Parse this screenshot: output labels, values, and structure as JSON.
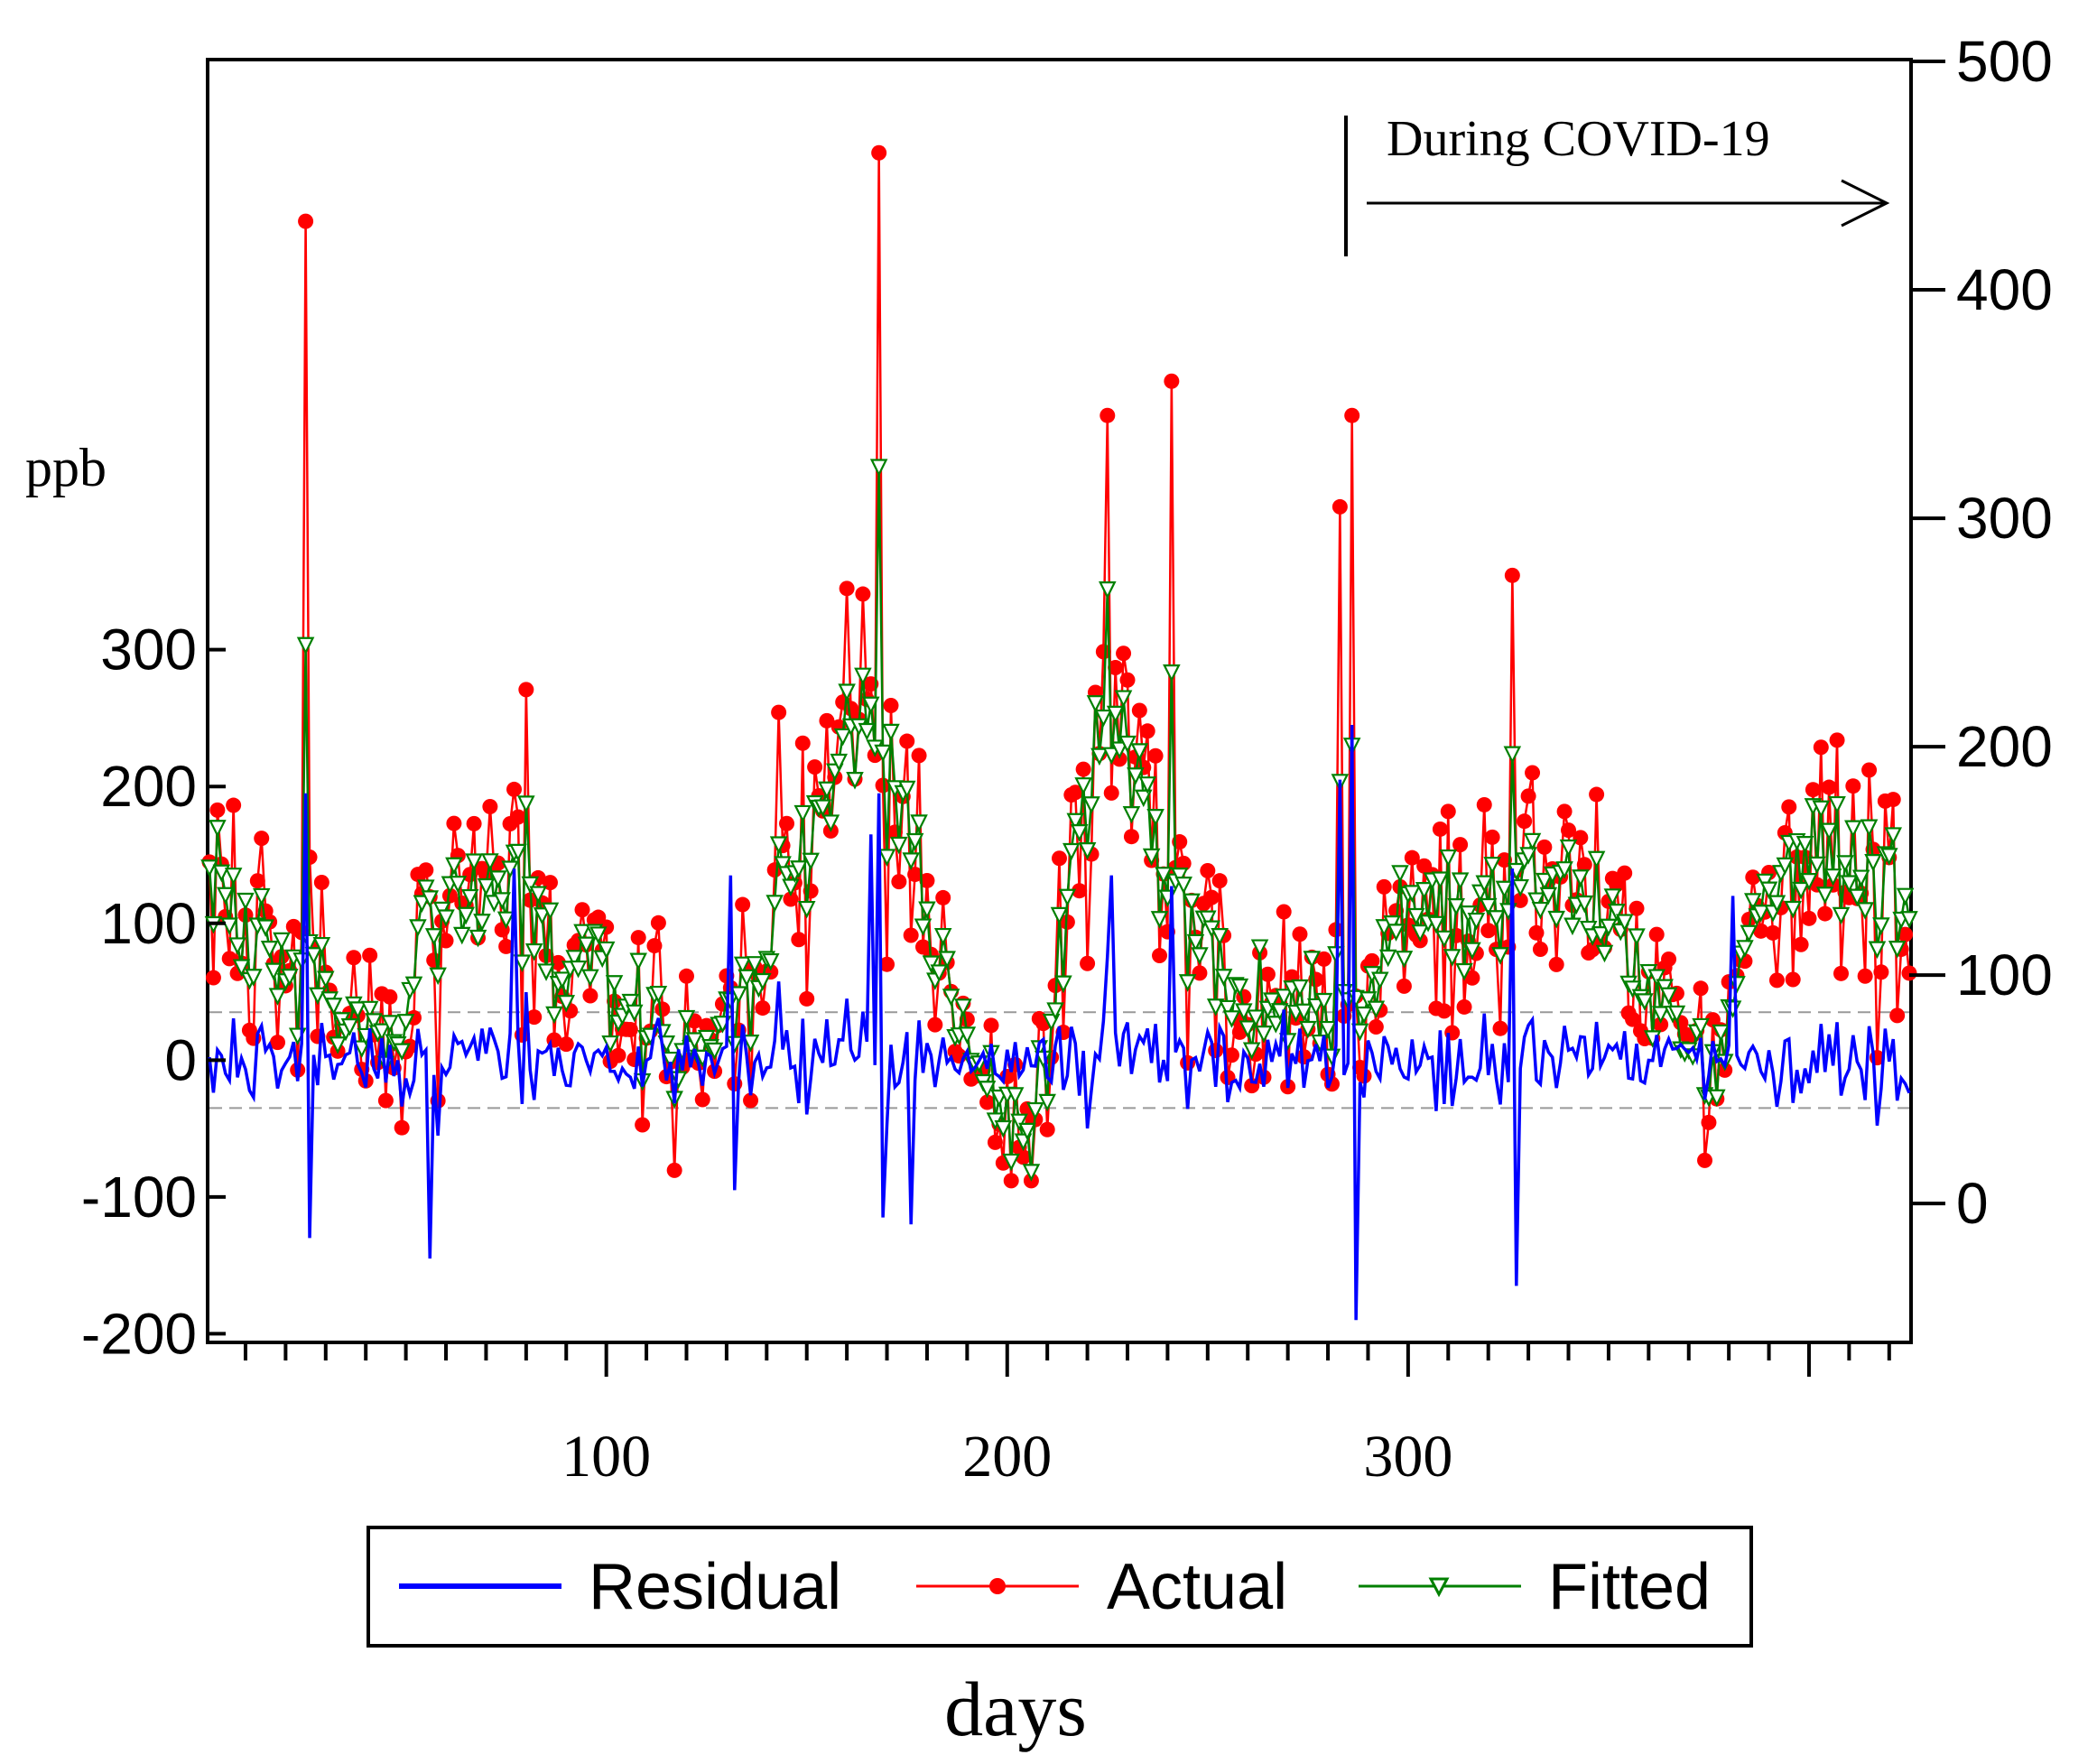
{
  "chart_data": {
    "type": "line",
    "xlabel": "days",
    "left_ylabel": "ppb",
    "annotation": "During COVID-19",
    "covid_start_day": 283,
    "x_range": [
      1,
      425
    ],
    "x_ticks": [
      100,
      200,
      300
    ],
    "right_axis": {
      "range": [
        -60,
        500
      ],
      "ticks": [
        0,
        100,
        200,
        300,
        400,
        500
      ],
      "tick_labels": [
        "0",
        "100",
        "200",
        "300",
        "400",
        "500"
      ]
    },
    "left_axis": {
      "range": [
        -205,
        730
      ],
      "ticks": [
        -200,
        -100,
        0,
        100,
        200,
        300
      ],
      "tick_labels": [
        "-200",
        "-100",
        "0",
        "100",
        "200",
        "300"
      ]
    },
    "residual_band": [
      -35,
      35
    ],
    "legend": [
      "Residual",
      "Actual",
      "Fitted"
    ],
    "colors": {
      "residual": "#0000ff",
      "actual": "#ff0000",
      "fitted": "#008000",
      "band": "#999999"
    },
    "baseline_profile": {
      "axis": "right",
      "x": [
        1,
        10,
        20,
        30,
        40,
        48,
        55,
        60,
        65,
        72,
        80,
        88,
        95,
        100,
        105,
        112,
        118,
        124,
        130,
        136,
        142,
        148,
        155,
        162,
        168,
        175,
        181,
        188,
        194,
        200,
        206,
        210,
        214,
        218,
        222,
        227,
        232,
        238,
        244,
        250,
        256,
        262,
        268,
        274,
        280,
        286,
        292,
        298,
        304,
        310,
        316,
        322,
        328,
        334,
        340,
        346,
        352,
        358,
        364,
        370,
        376,
        382,
        388,
        394,
        400,
        406,
        412,
        418,
        425
      ],
      "values": [
        150,
        120,
        105,
        90,
        75,
        70,
        130,
        135,
        120,
        130,
        130,
        105,
        110,
        100,
        95,
        75,
        65,
        70,
        80,
        95,
        120,
        165,
        170,
        195,
        210,
        175,
        110,
        75,
        55,
        40,
        30,
        60,
        120,
        170,
        200,
        205,
        180,
        150,
        130,
        115,
        100,
        90,
        80,
        85,
        85,
        90,
        100,
        125,
        130,
        140,
        130,
        135,
        145,
        140,
        135,
        120,
        120,
        100,
        85,
        65,
        60,
        90,
        130,
        150,
        160,
        150,
        150,
        140,
        140
      ]
    },
    "actual_spikes": [
      {
        "x": 25,
        "y": 430
      },
      {
        "x": 168,
        "y": 460
      },
      {
        "x": 225,
        "y": 345
      },
      {
        "x": 241,
        "y": 360
      },
      {
        "x": 283,
        "y": 305
      },
      {
        "x": 286,
        "y": 345
      },
      {
        "x": 326,
        "y": 275
      },
      {
        "x": 143,
        "y": 215
      },
      {
        "x": 80,
        "y": 225
      },
      {
        "x": 58,
        "y": 45
      }
    ],
    "residual_spikes": [
      {
        "x": 25,
        "y": 195
      },
      {
        "x": 26,
        "y": -130
      },
      {
        "x": 56,
        "y": -145
      },
      {
        "x": 77,
        "y": 140
      },
      {
        "x": 131,
        "y": 135
      },
      {
        "x": 132,
        "y": -95
      },
      {
        "x": 166,
        "y": 165
      },
      {
        "x": 168,
        "y": 195
      },
      {
        "x": 169,
        "y": -115
      },
      {
        "x": 176,
        "y": -120
      },
      {
        "x": 283,
        "y": 205
      },
      {
        "x": 286,
        "y": 245
      },
      {
        "x": 287,
        "y": -190
      },
      {
        "x": 326,
        "y": 140
      },
      {
        "x": 327,
        "y": -165
      },
      {
        "x": 381,
        "y": 120
      },
      {
        "x": 226,
        "y": 135
      }
    ]
  }
}
